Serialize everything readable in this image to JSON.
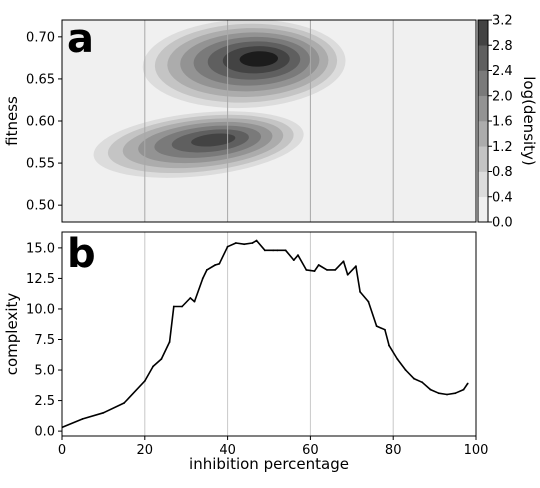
{
  "chart_data": [
    {
      "panel": "a",
      "type": "heatmap",
      "title": "",
      "xlabel": "",
      "ylabel": "fitness",
      "xlim": [
        0,
        100
      ],
      "ylim": [
        0.48,
        0.72
      ],
      "yticks": [
        "0.50",
        "0.55",
        "0.60",
        "0.65",
        "0.70"
      ],
      "grid": "vertical",
      "colorbar": {
        "label": "log(density)",
        "range": [
          0.0,
          3.2
        ],
        "ticks": [
          "0.0",
          "0.4",
          "0.8",
          "1.2",
          "1.6",
          "2.0",
          "2.4",
          "2.8",
          "3.2"
        ],
        "colors": [
          "#f0f0f0",
          "#dcdcdc",
          "#c4c4c4",
          "#acacac",
          "#939393",
          "#7a7a7a",
          "#5f5f5f",
          "#434343",
          "#1c1c1c"
        ]
      },
      "density_clusters": [
        {
          "name": "upper",
          "x_center": 44,
          "y_center": 0.668,
          "peak_log_density": 3.1,
          "x_extent": [
            16,
            65
          ],
          "y_extent": [
            0.61,
            0.715
          ]
        },
        {
          "name": "lower",
          "x_center": 33,
          "y_center": 0.572,
          "peak_log_density": 2.7,
          "x_extent": [
            7,
            58
          ],
          "y_extent": [
            0.535,
            0.61
          ]
        }
      ]
    },
    {
      "panel": "b",
      "type": "line",
      "title": "",
      "xlabel": "inhibition percentage",
      "ylabel": "complexity",
      "xlim": [
        0,
        100
      ],
      "ylim": [
        -0.4,
        16.3
      ],
      "xticks": [
        "0",
        "20",
        "40",
        "60",
        "80",
        "100"
      ],
      "yticks": [
        "0.0",
        "2.5",
        "5.0",
        "7.5",
        "10.0",
        "12.5",
        "15.0"
      ],
      "grid": "vertical",
      "color": "#000000",
      "x": [
        0,
        5,
        10,
        15,
        20,
        22,
        24,
        26,
        27,
        29,
        31,
        32,
        34,
        35,
        37,
        38,
        40,
        42,
        44,
        46,
        47,
        49,
        51,
        52,
        54,
        56,
        57,
        59,
        61,
        62,
        64,
        66,
        68,
        69,
        71,
        72,
        74,
        76,
        78,
        79,
        81,
        83,
        85,
        87,
        89,
        91,
        93,
        95,
        97,
        98
      ],
      "y": [
        0.3,
        1.0,
        1.5,
        2.3,
        4.1,
        5.3,
        5.9,
        7.3,
        10.2,
        10.2,
        10.9,
        10.6,
        12.5,
        13.2,
        13.6,
        13.7,
        15.1,
        15.4,
        15.3,
        15.4,
        15.6,
        14.8,
        14.8,
        14.8,
        14.8,
        14.0,
        14.4,
        13.2,
        13.1,
        13.6,
        13.2,
        13.2,
        13.9,
        12.8,
        13.5,
        11.4,
        10.6,
        8.6,
        8.3,
        7.0,
        5.9,
        5.0,
        4.3,
        4.0,
        3.4,
        3.1,
        3.0,
        3.1,
        3.4,
        3.9
      ]
    }
  ]
}
